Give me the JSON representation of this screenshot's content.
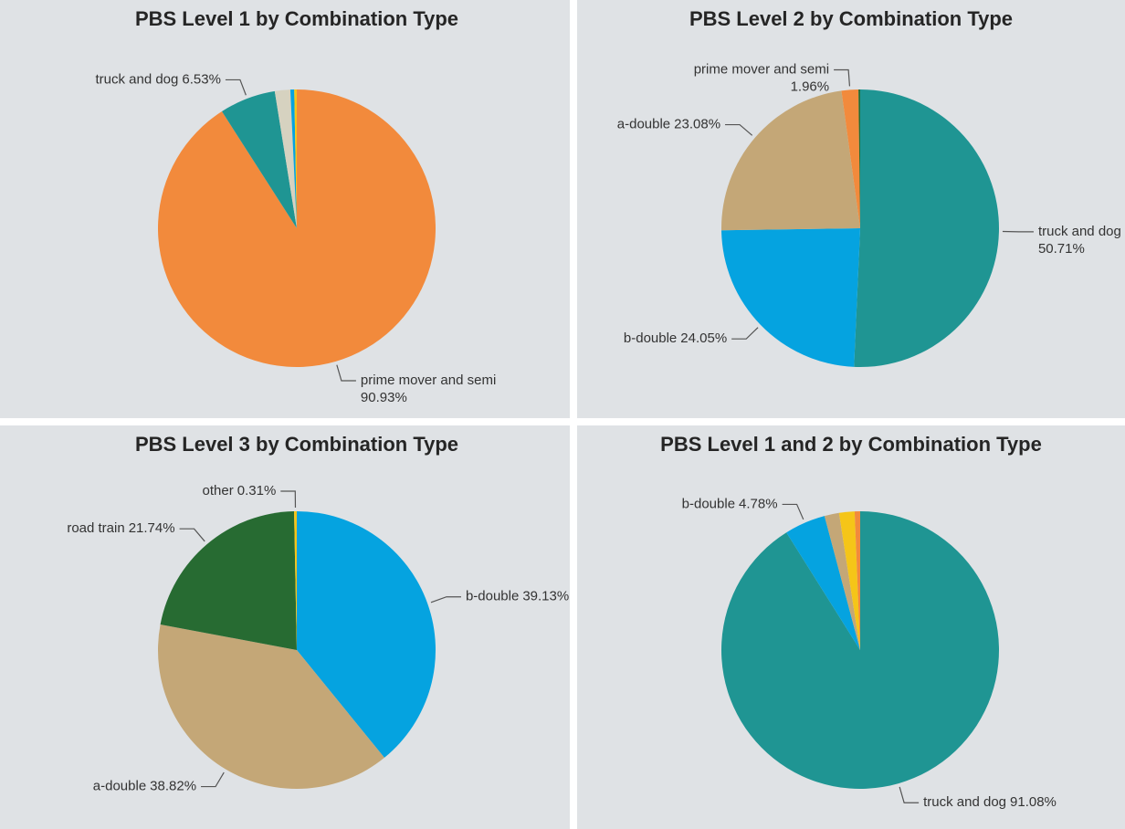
{
  "chart_data": [
    {
      "type": "pie",
      "title": "PBS Level 1 by Combination Type",
      "categories": [
        "prime mover and semi",
        "truck and dog",
        null,
        null,
        null
      ],
      "values": [
        90.93,
        6.53,
        1.8,
        0.45,
        0.29
      ],
      "value_labels": [
        "90.93%",
        "6.53%",
        null,
        null,
        null
      ],
      "colors": [
        "#f28a3c",
        "#1f9593",
        "#d6d2c0",
        "#05a3e0",
        "#f5c518"
      ]
    },
    {
      "type": "pie",
      "title": "PBS Level 2 by Combination Type",
      "categories": [
        "truck and dog",
        "b-double",
        "a-double",
        "prime mover and semi",
        null
      ],
      "values": [
        50.71,
        24.05,
        23.08,
        1.96,
        0.2
      ],
      "value_labels": [
        "50.71%",
        "24.05%",
        "23.08%",
        "1.96%",
        null
      ],
      "colors": [
        "#1f9593",
        "#05a3e0",
        "#c4a777",
        "#f28a3c",
        "#276b32"
      ]
    },
    {
      "type": "pie",
      "title": "PBS Level 3 by Combination Type",
      "categories": [
        "b-double",
        "a-double",
        "road train",
        "other"
      ],
      "values": [
        39.13,
        38.82,
        21.74,
        0.31
      ],
      "value_labels": [
        "39.13%",
        "38.82%",
        "21.74%",
        "0.31%"
      ],
      "colors": [
        "#05a3e0",
        "#c4a777",
        "#276b32",
        "#f5c518"
      ]
    },
    {
      "type": "pie",
      "title": "PBS Level 1 and 2 by Combination Type",
      "categories": [
        "truck and dog",
        "b-double",
        null,
        null,
        null
      ],
      "values": [
        91.08,
        4.78,
        1.7,
        1.8,
        0.64
      ],
      "value_labels": [
        "91.08%",
        "4.78%",
        null,
        null,
        null
      ],
      "colors": [
        "#1f9593",
        "#05a3e0",
        "#c4a777",
        "#f5c518",
        "#f28a3c"
      ]
    }
  ]
}
